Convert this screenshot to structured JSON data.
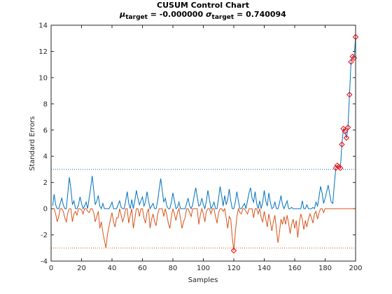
{
  "chart_data": {
    "type": "line",
    "title": "CUSUM Control Chart",
    "subtitle": [
      "μ",
      "target",
      " = -0.000000 ",
      "σ",
      "target",
      " = 0.740094"
    ],
    "xlabel": "Samples",
    "ylabel": "Standard Errors",
    "xlim": [
      0,
      200
    ],
    "xticks": [
      0,
      20,
      40,
      60,
      80,
      100,
      120,
      140,
      160,
      180,
      200
    ],
    "ylim": [
      -4,
      14
    ],
    "yticks": [
      -4,
      -2,
      0,
      2,
      4,
      6,
      8,
      10,
      12,
      14
    ],
    "control_limits": [
      {
        "value": 3,
        "color": "#0072bd"
      },
      {
        "value": -3,
        "color": "#d95319"
      }
    ],
    "violation_color": "#ff0000",
    "x": [
      1,
      2,
      3,
      4,
      5,
      6,
      7,
      8,
      9,
      10,
      11,
      12,
      13,
      14,
      15,
      16,
      17,
      18,
      19,
      20,
      21,
      22,
      23,
      24,
      25,
      26,
      27,
      28,
      29,
      30,
      31,
      32,
      33,
      34,
      35,
      36,
      37,
      38,
      39,
      40,
      41,
      42,
      43,
      44,
      45,
      46,
      47,
      48,
      49,
      50,
      51,
      52,
      53,
      54,
      55,
      56,
      57,
      58,
      59,
      60,
      61,
      62,
      63,
      64,
      65,
      66,
      67,
      68,
      69,
      70,
      71,
      72,
      73,
      74,
      75,
      76,
      77,
      78,
      79,
      80,
      81,
      82,
      83,
      84,
      85,
      86,
      87,
      88,
      89,
      90,
      91,
      92,
      93,
      94,
      95,
      96,
      97,
      98,
      99,
      100,
      101,
      102,
      103,
      104,
      105,
      106,
      107,
      108,
      109,
      110,
      111,
      112,
      113,
      114,
      115,
      116,
      117,
      118,
      119,
      120,
      121,
      122,
      123,
      124,
      125,
      126,
      127,
      128,
      129,
      130,
      131,
      132,
      133,
      134,
      135,
      136,
      137,
      138,
      139,
      140,
      141,
      142,
      143,
      144,
      145,
      146,
      147,
      148,
      149,
      150,
      151,
      152,
      153,
      154,
      155,
      156,
      157,
      158,
      159,
      160,
      161,
      162,
      163,
      164,
      165,
      166,
      167,
      168,
      169,
      170,
      171,
      172,
      173,
      174,
      175,
      176,
      177,
      178,
      179,
      180,
      181,
      182,
      183,
      184,
      185,
      186,
      187,
      188,
      189,
      190,
      191,
      192,
      193,
      194,
      195,
      196,
      197,
      198,
      199,
      200
    ],
    "series": [
      {
        "color": "#0072bd",
        "values": [
          0.2,
          1.1,
          0.3,
          0,
          0,
          0.4,
          0.8,
          0.3,
          0,
          0,
          1.2,
          2.4,
          1.5,
          0.3,
          0.6,
          0,
          0,
          0.3,
          0.9,
          0.4,
          0,
          0.2,
          0.5,
          0,
          0.8,
          1.6,
          2.5,
          1.4,
          0.3,
          0.6,
          1.0,
          0.2,
          0,
          0.4,
          0,
          0,
          0,
          0,
          0.2,
          0.5,
          0,
          0,
          0,
          0.3,
          0.6,
          0.1,
          0,
          0,
          0.6,
          1.3,
          0.4,
          0,
          0.7,
          0,
          0.6,
          1.4,
          0.8,
          0.3,
          0.6,
          0.9,
          0.2,
          0.5,
          1.3,
          0.6,
          0,
          0.2,
          0.4,
          0,
          0,
          0.6,
          1.5,
          2.3,
          1.4,
          0.5,
          0.8,
          0.2,
          0,
          0,
          0.5,
          1.2,
          0.6,
          0,
          0.1,
          0.5,
          0,
          0,
          0,
          0,
          0.4,
          0.8,
          0.2,
          0,
          0.3,
          1.0,
          1.6,
          0.9,
          0.2,
          0.3,
          0.8,
          0.3,
          0,
          0.6,
          1.4,
          0.7,
          0,
          0.2,
          0.5,
          0,
          0,
          0.8,
          1.7,
          1.0,
          0.2,
          1.0,
          0.3,
          0.7,
          1.5,
          0.6,
          0,
          0,
          0.5,
          1.3,
          0.6,
          0,
          0,
          0.2,
          0.4,
          0,
          0.6,
          1.2,
          1.6,
          0.8,
          0.5,
          1.3,
          0.4,
          0,
          0.6,
          0,
          0.5,
          1.4,
          0.6,
          0.2,
          1.2,
          0.5,
          0,
          0.1,
          0.5,
          0,
          0,
          0.4,
          1.0,
          0.3,
          0,
          0.3,
          0.6,
          0,
          0,
          0.1,
          0,
          0,
          0,
          0,
          0,
          0,
          0.6,
          0,
          0,
          0.3,
          0,
          0,
          0,
          0.1,
          0,
          0.5,
          0.2,
          0.9,
          1.7,
          1.2,
          0.4,
          0.8,
          1.3,
          1.8,
          1.1,
          0.5,
          0.4,
          1.8,
          3.1,
          3.3,
          3.2,
          3.1,
          4.9,
          6.1,
          5.9,
          5.4,
          6.2,
          8.7,
          11.2,
          11.6,
          11.5,
          13.1
        ]
      },
      {
        "color": "#d95319",
        "values": [
          0,
          0,
          -0.4,
          -1.0,
          -0.6,
          0,
          0,
          -0.2,
          -0.7,
          -1.0,
          -0.3,
          0,
          0,
          -1.0,
          -0.4,
          -0.2,
          -0.5,
          0,
          0,
          -0.1,
          -0.4,
          0,
          0,
          -0.2,
          -0.3,
          0,
          0,
          -0.3,
          -1.0,
          -0.6,
          -0.2,
          -1.5,
          -1.0,
          -1.8,
          -2.4,
          -3.0,
          -2.0,
          -1.4,
          -0.8,
          -0.3,
          -1.0,
          -1.4,
          -0.7,
          -0.7,
          0,
          -0.5,
          -1.0,
          -0.6,
          0,
          0,
          -1.1,
          -0.5,
          0,
          -1.5,
          -0.8,
          0,
          0,
          -0.6,
          0,
          0,
          -0.7,
          -1.1,
          -0.3,
          0,
          -1.5,
          -0.8,
          -0.4,
          -1.0,
          -1.3,
          -0.4,
          0,
          0,
          0,
          -0.6,
          0,
          -0.5,
          -1.1,
          -1.5,
          -0.6,
          0,
          -0.4,
          -0.9,
          -0.3,
          0,
          -0.8,
          -1.5,
          -1.0,
          -0.7,
          0,
          0,
          -0.3,
          -0.6,
          0,
          0,
          0,
          0,
          -1.2,
          -0.5,
          0,
          -0.4,
          -1.0,
          -0.2,
          0,
          0,
          -0.4,
          0,
          0,
          -0.6,
          -1.1,
          -0.3,
          0,
          0,
          -0.2,
          0,
          -0.7,
          -1.5,
          -0.6,
          -0.8,
          -2.2,
          -3.2,
          -1.8,
          -0.6,
          0,
          -0.3,
          -0.4,
          0,
          0,
          -0.2,
          -0.4,
          0,
          0,
          0,
          -0.7,
          0,
          0,
          -0.4,
          0,
          -0.7,
          -1.0,
          -0.2,
          -0.8,
          -1.4,
          -0.4,
          -1.0,
          -1.7,
          -1.0,
          -0.5,
          -1.6,
          -2.6,
          -1.8,
          -0.8,
          -1.2,
          -0.6,
          -1.2,
          -0.5,
          -1.1,
          -1.9,
          -1.2,
          -0.8,
          -1.5,
          -0.9,
          -2.2,
          -1.1,
          -0.4,
          -0.8,
          -1.6,
          -0.9,
          -1.4,
          -0.8,
          -0.4,
          -0.7,
          -1.1,
          -0.4,
          -0.2,
          -0.8,
          -0.3,
          0,
          0,
          -0.3,
          0,
          0,
          0,
          0,
          0,
          0,
          0,
          0,
          0,
          0,
          0,
          0,
          0,
          0,
          0,
          0,
          0,
          0,
          0,
          0,
          0
        ]
      }
    ]
  }
}
